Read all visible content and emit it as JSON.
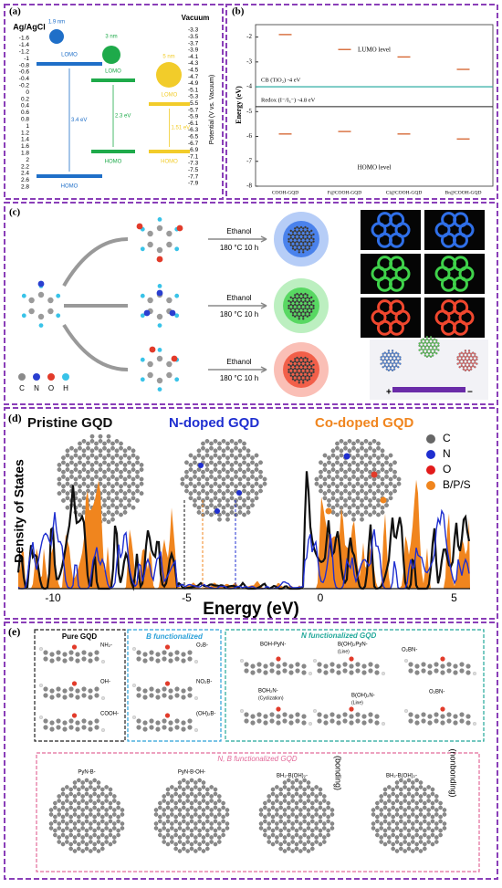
{
  "panel_a": {
    "label": "(a)",
    "left_axis_title": "Ag/AgCl",
    "left_ticks": [
      -1.6,
      -1.4,
      -1.2,
      -1,
      -0.8,
      -0.6,
      -0.4,
      -0.2,
      0,
      0.2,
      0.4,
      0.6,
      0.8,
      1,
      1.2,
      1.4,
      1.6,
      1.8,
      2,
      2.2,
      2.4,
      2.6,
      2.8
    ],
    "right_axis_title": "Vacuum",
    "right_ticks": [
      -3.3,
      -3.5,
      -3.7,
      -3.9,
      -4.1,
      -4.3,
      -4.5,
      -4.7,
      -4.9,
      -5.1,
      -5.3,
      -5.5,
      -5.7,
      -5.9,
      -6.1,
      -6.3,
      -6.5,
      -6.7,
      -6.9,
      -7.1,
      -7.3,
      -7.5,
      -7.7,
      -7.9
    ],
    "right_axis_label": "Potential (V vs. Vacuum)",
    "dots": [
      {
        "size": "1.9 nm",
        "lumo": "LOMO",
        "gap": "3.4 eV",
        "homo": "HOMO"
      },
      {
        "size": "3 nm",
        "lumo": "LOMO",
        "gap": "2.3 eV",
        "homo": "HOMO"
      },
      {
        "size": "5 nm",
        "lumo": "LOMO",
        "gap": "1.51 eV",
        "homo": "HOMO"
      }
    ]
  },
  "panel_b": {
    "label": "(b)",
    "y_label": "Energy (eV)",
    "ylim": [
      -1.5,
      -8
    ],
    "yticks": [
      -2,
      -3,
      -4,
      -5,
      -6,
      -7,
      -8
    ],
    "categories": [
      "COOH-GQD",
      "F@COOH-GQD",
      "Cl@COOH-GQD",
      "Br@COOH-GQD"
    ],
    "lumo_values": [
      -1.9,
      -2.5,
      -2.8,
      -3.3
    ],
    "homo_values": [
      -5.9,
      -5.8,
      -5.9,
      -6.1
    ],
    "lumo_text": "LUMO level",
    "homo_text": "HOMO level",
    "cb_text": "CB (TiO₂) -4 eV",
    "cb_value": -4,
    "redox_text": "Redox (I⁻/I₃⁻) -4.8 eV",
    "redox_value": -4.8
  },
  "panel_c": {
    "label": "(c)",
    "solvent": [
      "Ethanol",
      "Ethanol",
      "Ethanol"
    ],
    "condition": [
      "180 °C 10 h",
      "180 °C 10 h",
      "180 °C 10 h"
    ],
    "legend": [
      "C",
      "N",
      "O",
      "H"
    ],
    "plus": "+",
    "minus": "−"
  },
  "panel_d": {
    "label": "(d)",
    "titles": [
      "Pristine GQD",
      "N-doped GQD",
      "Co-doped GQD"
    ],
    "legend": [
      "C",
      "N",
      "O",
      "B/P/S"
    ],
    "y_label": "Density of States",
    "x_label": "Energy (eV)",
    "xticks": [
      -10,
      -5,
      0,
      5
    ]
  },
  "panel_e": {
    "label": "(e)",
    "pure": {
      "title": "Pure GQD",
      "items": [
        "NH₂-",
        "OH-",
        "COOH-"
      ]
    },
    "boron": {
      "title": "B functionalized",
      "items": [
        "O₂B-",
        "NO₂B-",
        "(OH)₂B-"
      ]
    },
    "nitrogen": {
      "title": "N functionalized GQD",
      "items": [
        "BOH-PyN-",
        "B(OH)₂PyN-",
        "(Line)",
        "O₂BN-",
        "BOH₂N-",
        "(Cyclization)",
        "B(OH)₂N-",
        "(Line)",
        "O₂BN-"
      ]
    },
    "nb": {
      "title": "N, B functionalized GQD",
      "items": [
        "PyN-B-",
        "PyN-B-OH-",
        "BH₂-B(OH)₂-",
        "(bonding)",
        "BH₂-B(OH)₂-",
        "(nonbonding)"
      ]
    }
  }
}
